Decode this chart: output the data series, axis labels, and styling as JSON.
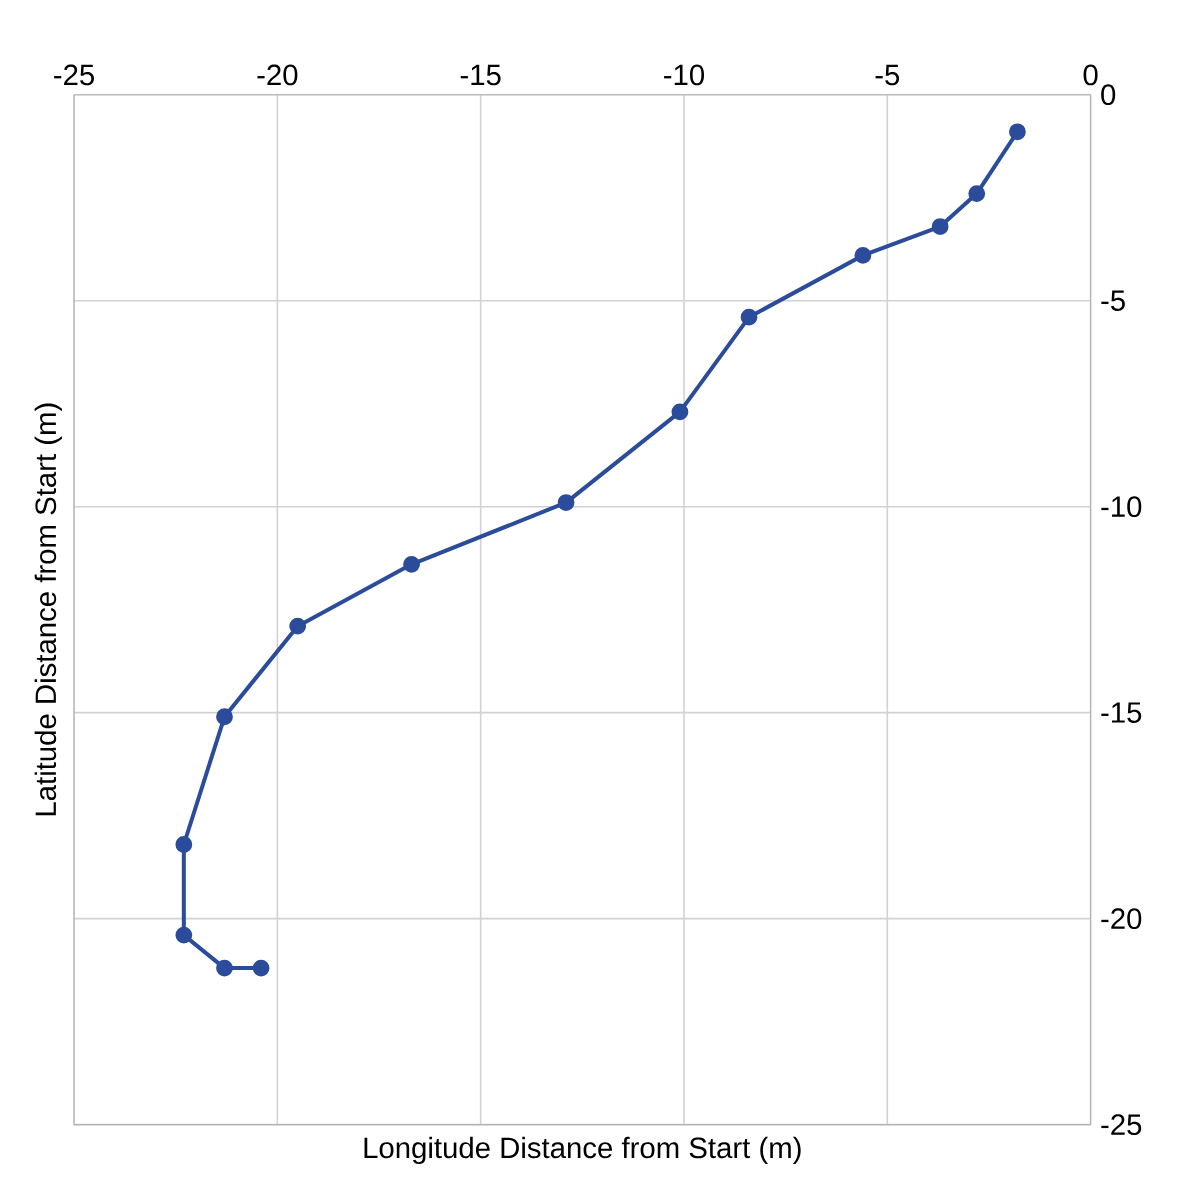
{
  "chart_data": {
    "type": "line",
    "xlabel": "Longitude Distance from Start (m)",
    "ylabel": "Latitude Distance from Start (m)",
    "x": [
      -1.8,
      -2.8,
      -3.7,
      -5.6,
      -8.4,
      -10.1,
      -12.9,
      -16.7,
      -19.5,
      -21.3,
      -22.3,
      -22.3,
      -21.3,
      -20.4
    ],
    "series": [
      {
        "color": "#2b4c9b",
        "values": [
          -0.9,
          -2.4,
          -3.2,
          -3.9,
          -5.4,
          -7.7,
          -9.9,
          -11.4,
          -12.9,
          -15.1,
          -18.2,
          -20.4,
          -21.2,
          -21.2
        ]
      }
    ],
    "xlim": [
      -25,
      0
    ],
    "xticks": [
      -25,
      -20,
      -15,
      -10,
      -5,
      0
    ],
    "ylim": [
      -25,
      0
    ],
    "yticks": [
      -25,
      -20,
      -15,
      -10,
      -5,
      0
    ],
    "grid": true,
    "marker": "circle",
    "line_style": "solid"
  }
}
